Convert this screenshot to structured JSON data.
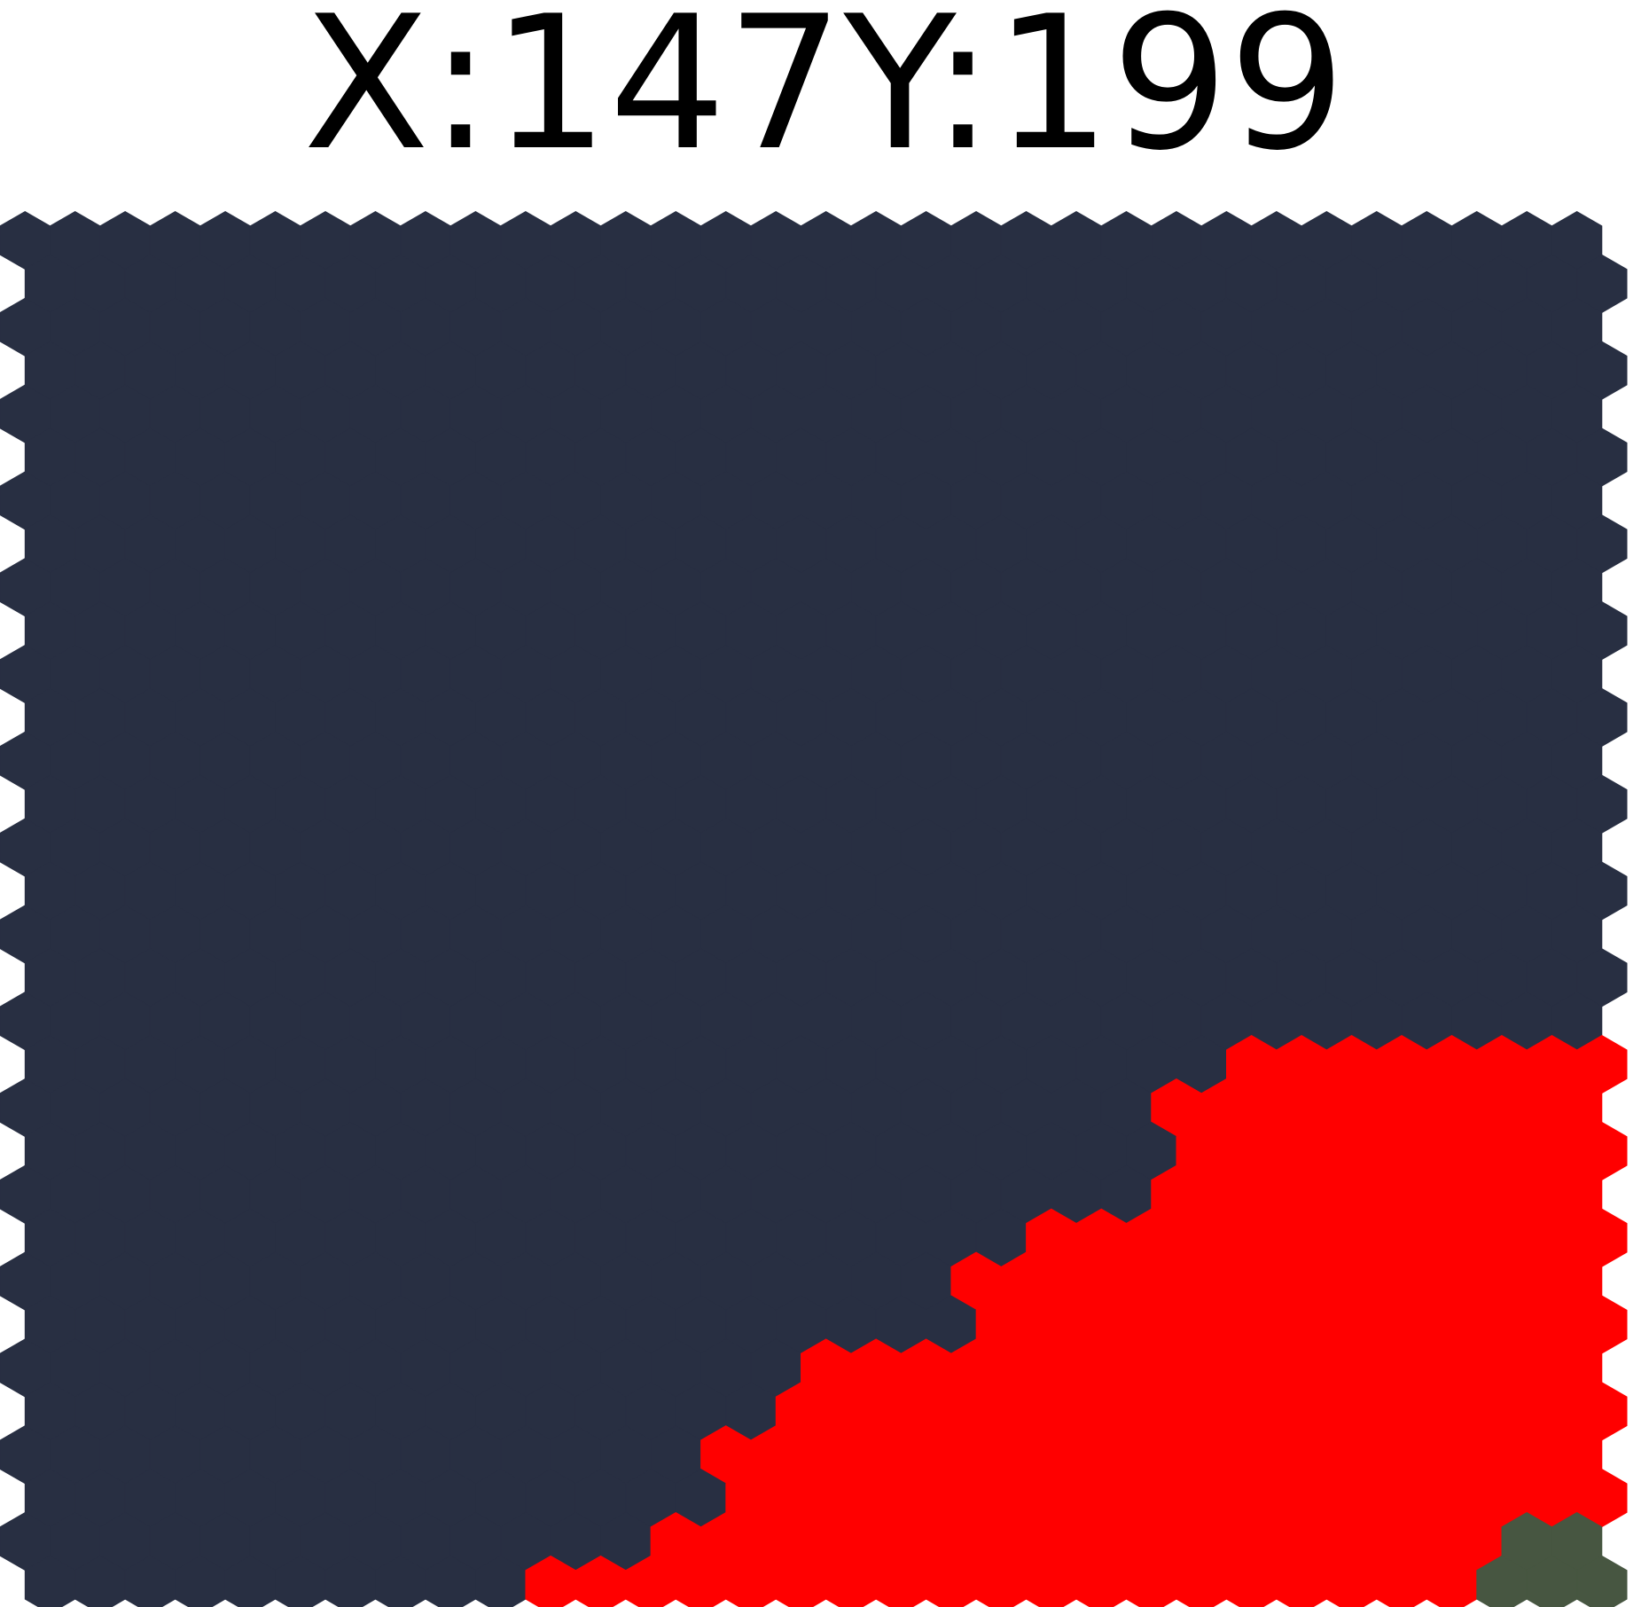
{
  "coordinates": {
    "x_label": "X:",
    "x_value": "147",
    "y_label": "Y:",
    "y_value": "199"
  },
  "colors": {
    "background": "#ffffff",
    "text": "#000000",
    "dark_region": "#282f42",
    "red_region": "#ff0000",
    "green_region": "#475641"
  },
  "map": {
    "grid": {
      "columns": 32,
      "rows": 32
    },
    "regions": [
      {
        "name": "dark-region",
        "color_key": "dark_region"
      },
      {
        "name": "red-region",
        "color_key": "red_region"
      },
      {
        "name": "green-region",
        "color_key": "green_region"
      }
    ]
  }
}
